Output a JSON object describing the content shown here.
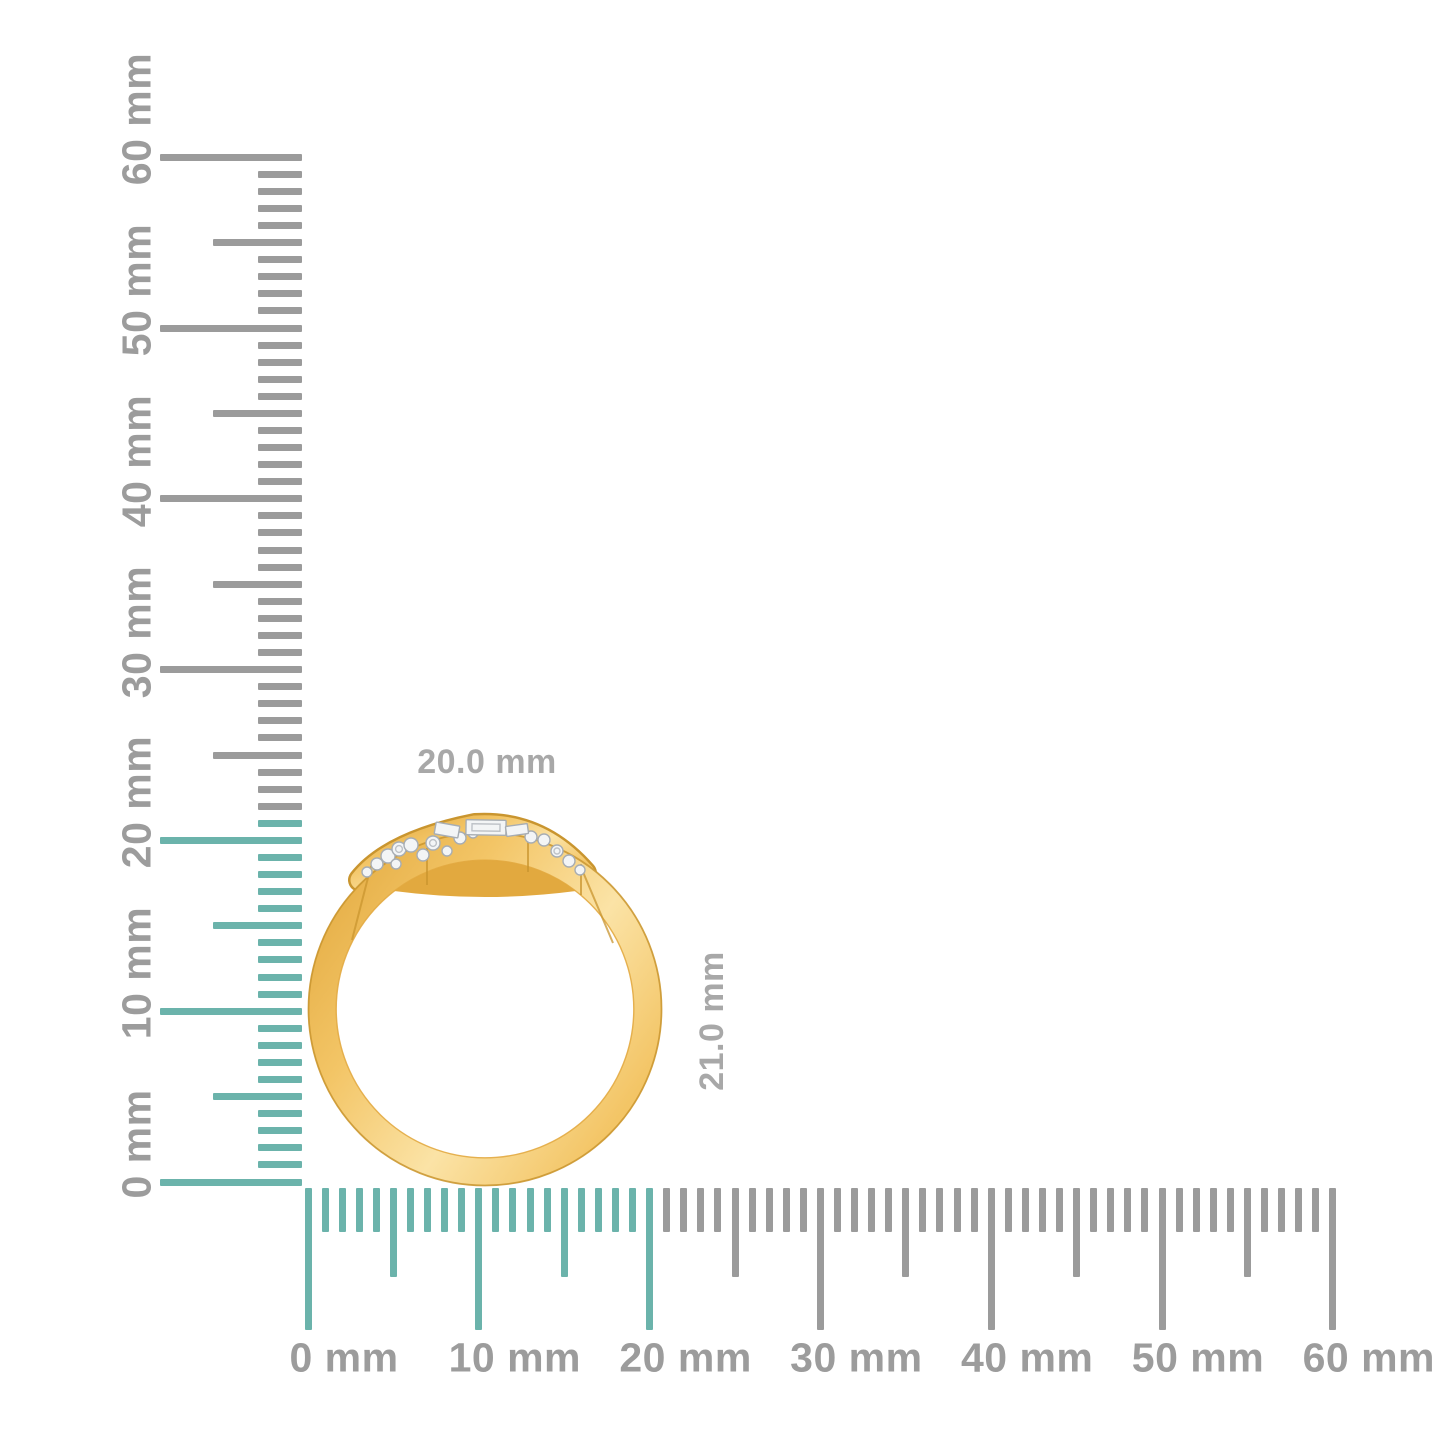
{
  "dimension_labels": {
    "width": "20.0 mm",
    "height": "21.0 mm"
  },
  "rulers": {
    "unit_suffix": "mm",
    "max_mm": 60,
    "minor_step_mm": 1,
    "medium_step_mm": 5,
    "major_step_mm": 10,
    "vertical": {
      "labels": [
        "0 mm",
        "10 mm",
        "20 mm",
        "30 mm",
        "40 mm",
        "50 mm",
        "60 mm"
      ],
      "highlight_max_mm": 21
    },
    "horizontal": {
      "labels": [
        "0 mm",
        "10 mm",
        "20 mm",
        "30 mm",
        "40 mm",
        "50 mm",
        "60 mm"
      ],
      "highlight_max_mm": 20
    }
  },
  "colors": {
    "background": "#ffffff",
    "tick_gray": "#9b9b9b",
    "tick_highlight_teal": "#6bb3ab",
    "ruler_label_gray": "#9c9c9c",
    "dimension_label_gray": "#a8a8a8",
    "gold": "#f3c566",
    "gold_light": "#fbe3a6",
    "gold_dark": "#c9952f",
    "gold_deep": "#e2a93f",
    "diamond_white": "#f3f5f6",
    "diamond_outline": "#a7adb3"
  }
}
